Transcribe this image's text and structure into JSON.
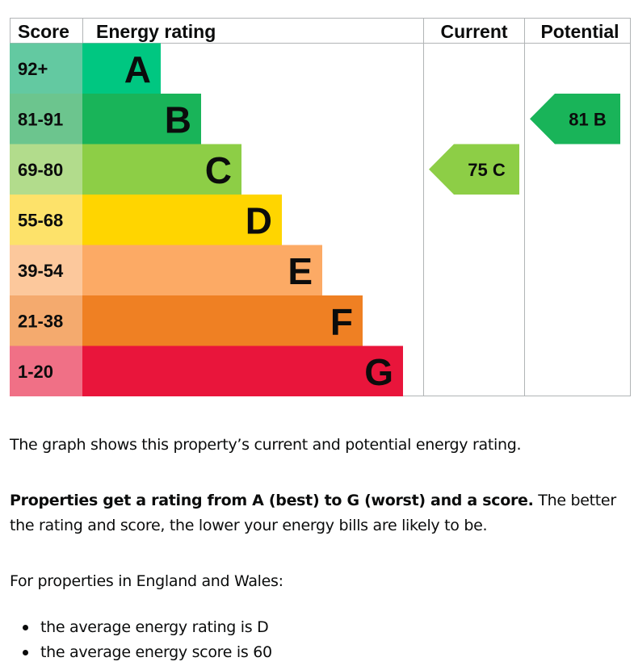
{
  "chart_data": {
    "type": "bar",
    "headers": {
      "score": "Score",
      "rating": "Energy rating",
      "current": "Current",
      "potential": "Potential"
    },
    "bands": [
      {
        "letter": "A",
        "range": "92+",
        "color": "#00c781",
        "tint": "#63c9a1"
      },
      {
        "letter": "B",
        "range": "81-91",
        "color": "#19b459",
        "tint": "#6cc58e"
      },
      {
        "letter": "C",
        "range": "69-80",
        "color": "#8dce46",
        "tint": "#b2dc8c"
      },
      {
        "letter": "D",
        "range": "55-68",
        "color": "#ffd500",
        "tint": "#fde26a"
      },
      {
        "letter": "E",
        "range": "39-54",
        "color": "#fcaa65",
        "tint": "#fcc89c"
      },
      {
        "letter": "F",
        "range": "21-38",
        "color": "#ef8023",
        "tint": "#f4aa6e"
      },
      {
        "letter": "G",
        "range": "1-20",
        "color": "#e9153b",
        "tint": "#f07086"
      }
    ],
    "current": {
      "score": 75,
      "band": "C",
      "label": "75  C"
    },
    "potential": {
      "score": 81,
      "band": "B",
      "label": "81  B"
    }
  },
  "text": {
    "intro": "The graph shows this property’s current and potential energy rating.",
    "bold": "Properties get a rating from A (best) to G (worst) and a score.",
    "rest": " The better the rating and score, the lower your energy bills are likely to be.",
    "region": "For properties in England and Wales:",
    "bullets": [
      "the average energy rating is D",
      "the average energy score is 60"
    ]
  }
}
